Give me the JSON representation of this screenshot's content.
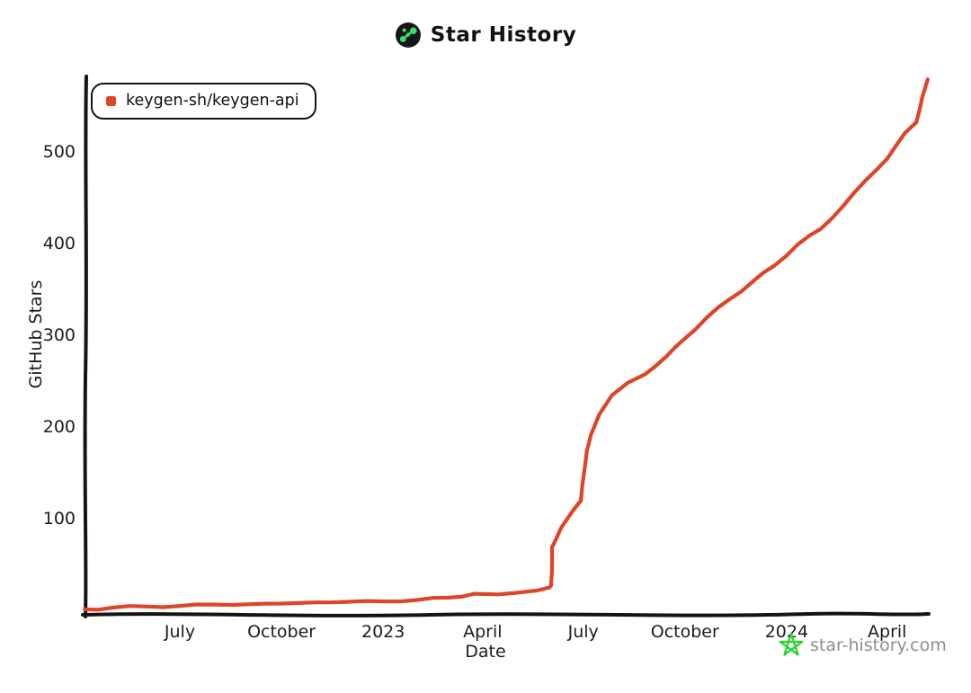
{
  "header": {
    "title": "Star History"
  },
  "legend": {
    "label": "keygen-sh/keygen-api"
  },
  "watermark": {
    "text": "star-history.com",
    "star_color": "#2fd32f",
    "text_color": "#8e8e8e"
  },
  "colors": {
    "line": "#dd4528",
    "axis": "#141414",
    "logo_bg": "#14161b",
    "logo_dots": "#35e06a"
  },
  "chart_data": {
    "type": "line",
    "title": "Star History",
    "xlabel": "Date",
    "ylabel": "GitHub Stars",
    "legend_position": "top-left",
    "grid": false,
    "style": "xkcd-hand-drawn",
    "x_range": [
      "2022-04-06",
      "2024-05-10"
    ],
    "ylim": [
      0,
      590
    ],
    "y_ticks": [
      100,
      200,
      300,
      400,
      500
    ],
    "x_ticks": [
      {
        "date": "2022-07-01",
        "label": "July"
      },
      {
        "date": "2022-10-01",
        "label": "October"
      },
      {
        "date": "2023-01-01",
        "label": "2023"
      },
      {
        "date": "2023-04-01",
        "label": "April"
      },
      {
        "date": "2023-07-01",
        "label": "July"
      },
      {
        "date": "2023-10-01",
        "label": "October"
      },
      {
        "date": "2024-01-01",
        "label": "2024"
      },
      {
        "date": "2024-04-01",
        "label": "April"
      }
    ],
    "series": [
      {
        "name": "keygen-sh/keygen-api",
        "color": "#dd4528",
        "points": [
          [
            "2022-04-06",
            0
          ],
          [
            "2022-05-01",
            2
          ],
          [
            "2022-06-01",
            3
          ],
          [
            "2022-07-01",
            4
          ],
          [
            "2022-08-01",
            5
          ],
          [
            "2022-09-01",
            6
          ],
          [
            "2022-10-01",
            6
          ],
          [
            "2022-11-01",
            8
          ],
          [
            "2022-12-01",
            8
          ],
          [
            "2023-01-01",
            9
          ],
          [
            "2023-02-01",
            10
          ],
          [
            "2023-03-01",
            13
          ],
          [
            "2023-03-25",
            17
          ],
          [
            "2023-04-15",
            16
          ],
          [
            "2023-05-01",
            18
          ],
          [
            "2023-05-20",
            21
          ],
          [
            "2023-06-01",
            24
          ],
          [
            "2023-06-02",
            26
          ],
          [
            "2023-06-03",
            68
          ],
          [
            "2023-06-05",
            72
          ],
          [
            "2023-06-11",
            89
          ],
          [
            "2023-06-22",
            109
          ],
          [
            "2023-06-29",
            119
          ],
          [
            "2023-07-02",
            151
          ],
          [
            "2023-07-04",
            173
          ],
          [
            "2023-07-08",
            191
          ],
          [
            "2023-07-16",
            213
          ],
          [
            "2023-07-27",
            233
          ],
          [
            "2023-08-10",
            247
          ],
          [
            "2023-08-26",
            257
          ],
          [
            "2023-09-14",
            275
          ],
          [
            "2023-10-01",
            296
          ],
          [
            "2023-10-21",
            318
          ],
          [
            "2023-11-11",
            339
          ],
          [
            "2023-12-01",
            357
          ],
          [
            "2023-12-21",
            375
          ],
          [
            "2024-01-11",
            398
          ],
          [
            "2024-02-01",
            415
          ],
          [
            "2024-02-21",
            440
          ],
          [
            "2024-03-12",
            467
          ],
          [
            "2024-04-01",
            492
          ],
          [
            "2024-04-17",
            519
          ],
          [
            "2024-04-27",
            531
          ],
          [
            "2024-05-03",
            559
          ],
          [
            "2024-05-08",
            578
          ]
        ]
      }
    ]
  }
}
